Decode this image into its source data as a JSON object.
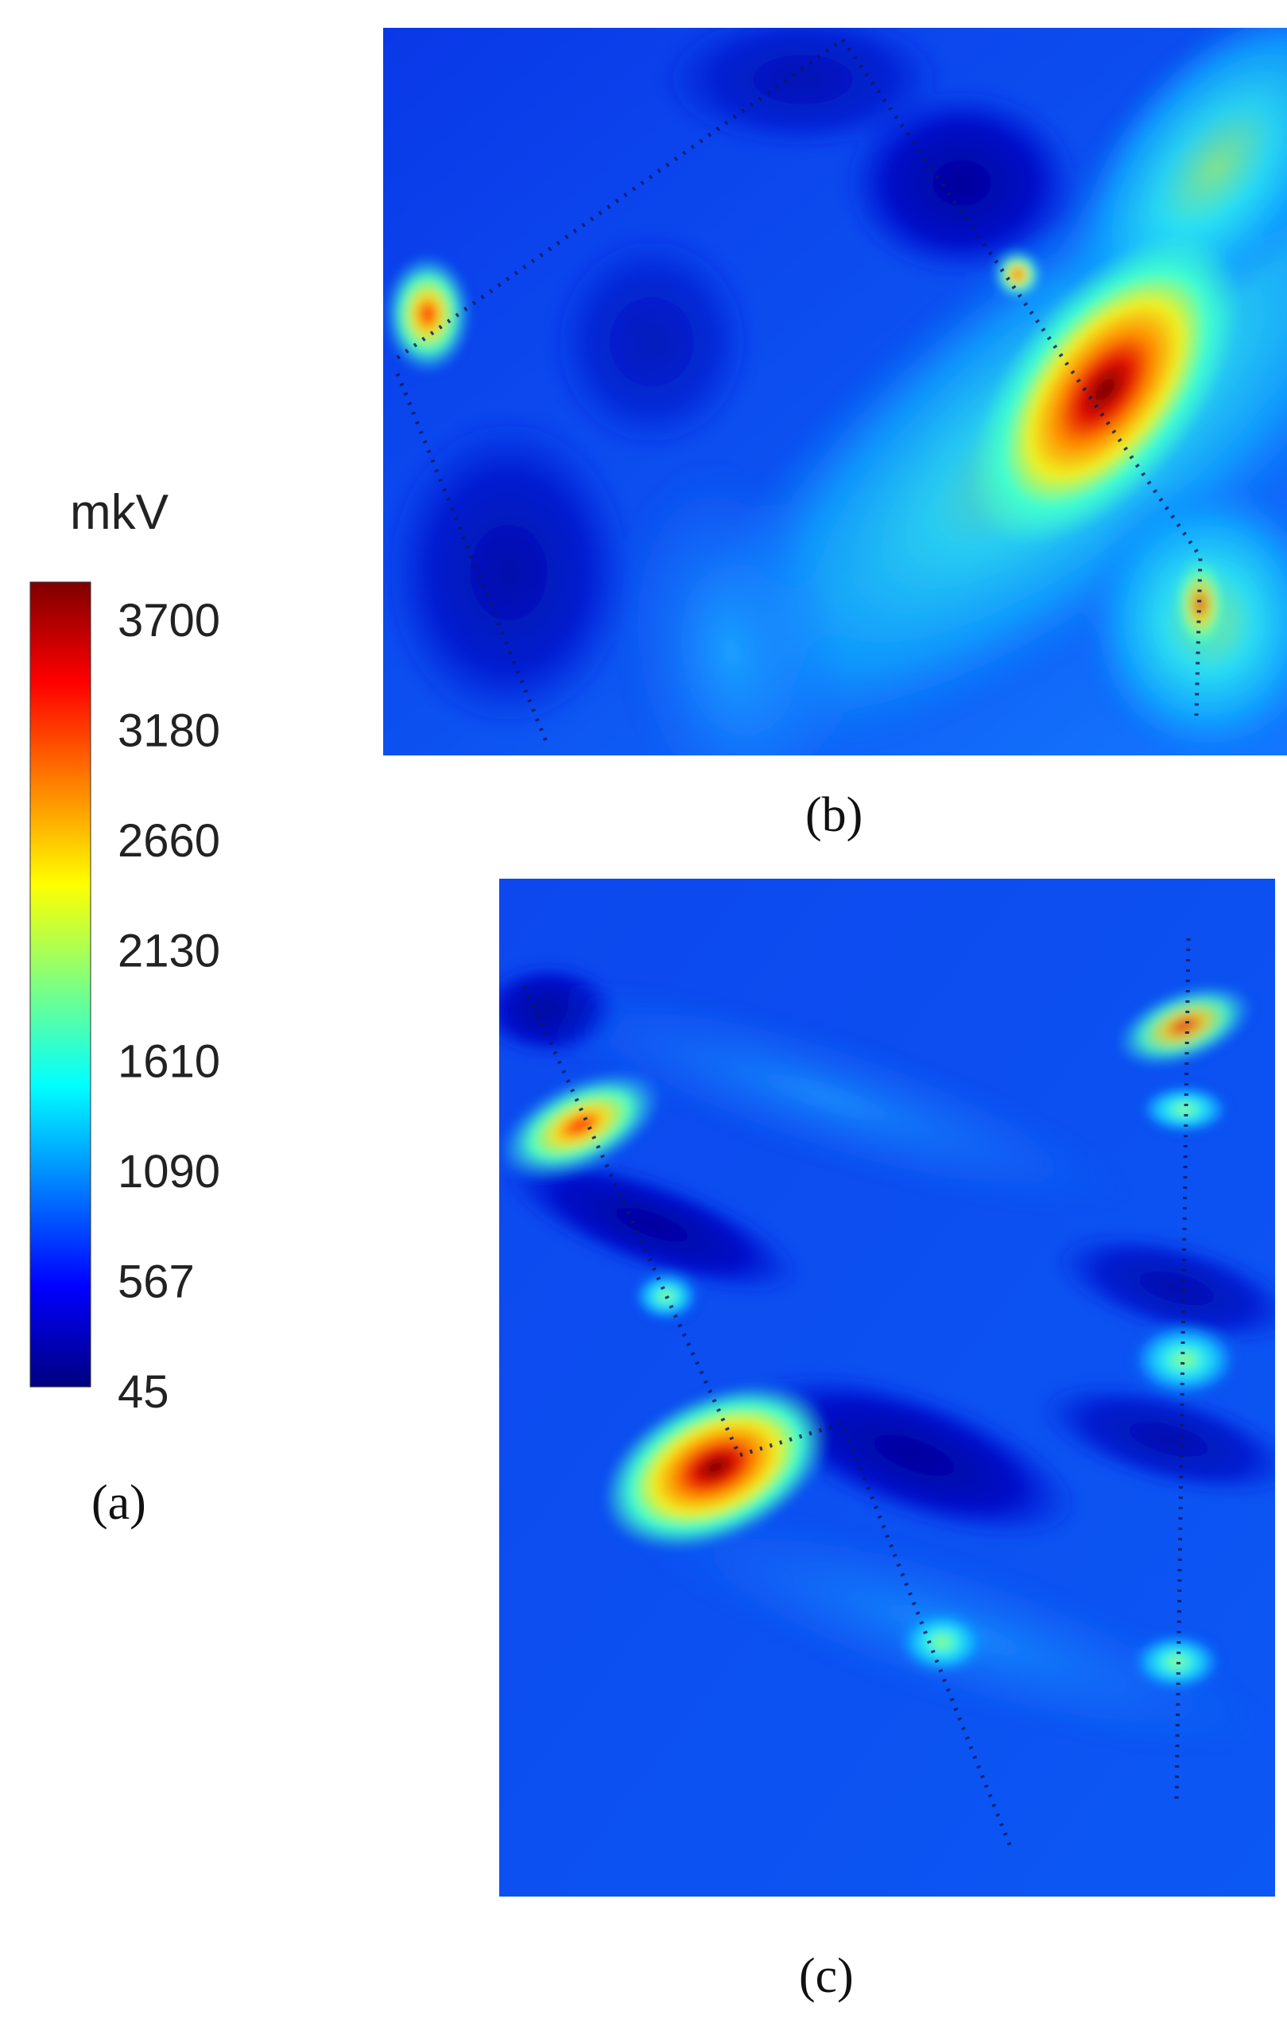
{
  "panels": {
    "a": {
      "label": "(a)"
    },
    "b": {
      "label": "(b)"
    },
    "c": {
      "label": "(c)"
    }
  },
  "chart_data": [
    {
      "type": "colorbar",
      "unit": "mkV",
      "ticks": [
        3700,
        3180,
        2660,
        2130,
        1610,
        1090,
        567,
        45
      ],
      "range": [
        45,
        3700
      ],
      "colormap": "jet",
      "colors": [
        "#00007f",
        "#0000ff",
        "#007fff",
        "#00ffff",
        "#7fff7f",
        "#ffff00",
        "#ff7f00",
        "#ff0000",
        "#7f0000"
      ]
    },
    {
      "type": "heatmap",
      "panel": "b",
      "colormap": "jet",
      "max_value": 3700,
      "min_value": 45
    },
    {
      "type": "heatmap",
      "panel": "c",
      "colormap": "jet",
      "max_value": 3700,
      "min_value": 45
    }
  ]
}
